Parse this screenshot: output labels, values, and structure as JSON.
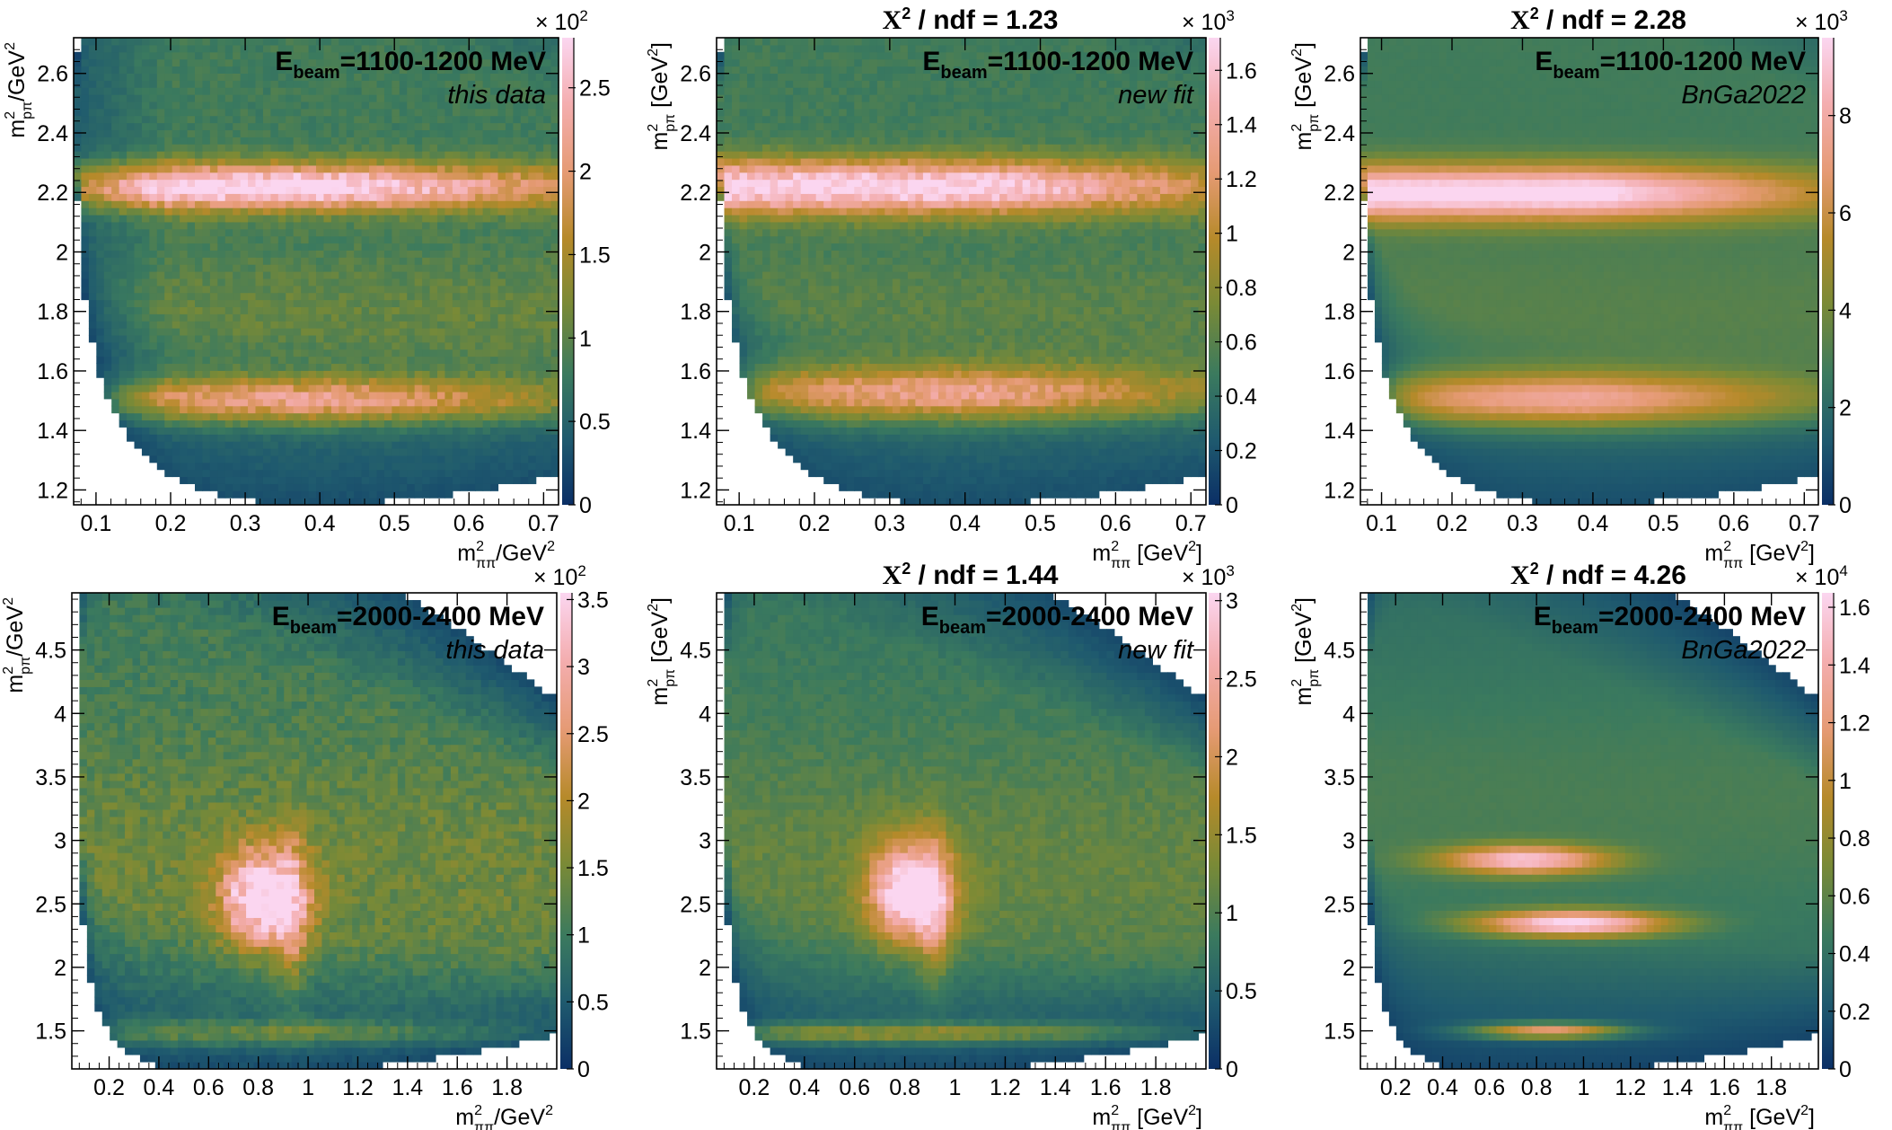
{
  "chart_data": [
    {
      "type": "heatmap",
      "id": "tl",
      "beam_label": "E_beam=1100-1200 MeV",
      "beam_prefix": "E",
      "beam_sub": "beam",
      "beam_range": "=1100-1200 MeV",
      "sublabel": "this data",
      "chi2": "",
      "xlabel": "m²ππ/GeV²",
      "x_base": "m",
      "x_sup": "2",
      "x_sub": "ππ",
      "x_unit": "/GeV",
      "x_unit_sup": "2",
      "ylabel": "m²pπ/GeV²",
      "y_base": "m",
      "y_sup": "2",
      "y_sub": "pπ",
      "y_unit": "/GeV",
      "y_unit_sup": "2",
      "xlim": [
        0.07,
        0.72
      ],
      "ylim": [
        1.15,
        2.72
      ],
      "xticks": [
        "0.1",
        "0.2",
        "0.3",
        "0.4",
        "0.5",
        "0.6",
        "0.7"
      ],
      "yticks": [
        "1.2",
        "1.4",
        "1.6",
        "1.8",
        "2",
        "2.2",
        "2.4",
        "2.6"
      ],
      "z_multiplier": "× 10²",
      "z_mult_base": "× 10",
      "z_mult_exp": "2",
      "zlim": [
        0,
        2.8
      ],
      "zticks": [
        "0",
        "0.5",
        "1",
        "1.5",
        "2",
        "2.5"
      ]
    },
    {
      "type": "heatmap",
      "id": "tm",
      "beam_label": "E_beam=1100-1200 MeV",
      "beam_prefix": "E",
      "beam_sub": "beam",
      "beam_range": "=1100-1200 MeV",
      "sublabel": "new fit",
      "chi2": "X² / ndf = 1.23",
      "chi_base": "X",
      "chi_sup": "2",
      "chi_rest": " / ndf = 1.23",
      "xlabel": "m²ππ [GeV²]",
      "x_base": "m",
      "x_sup": "2",
      "x_sub": "ππ",
      "x_unit": " [GeV",
      "x_unit_sup": "2",
      "x_unit_end": "]",
      "ylabel": "m²pπ [GeV²]",
      "y_base": "m",
      "y_sup": "2",
      "y_sub": "pπ",
      "y_unit": " [GeV",
      "y_unit_sup": "2",
      "y_unit_end": "]",
      "xlim": [
        0.07,
        0.72
      ],
      "ylim": [
        1.15,
        2.72
      ],
      "xticks": [
        "0.1",
        "0.2",
        "0.3",
        "0.4",
        "0.5",
        "0.6",
        "0.7"
      ],
      "yticks": [
        "1.2",
        "1.4",
        "1.6",
        "1.8",
        "2",
        "2.2",
        "2.4",
        "2.6"
      ],
      "z_multiplier": "× 10³",
      "z_mult_base": "× 10",
      "z_mult_exp": "3",
      "zlim": [
        0,
        1.72
      ],
      "zticks": [
        "0",
        "0.2",
        "0.4",
        "0.6",
        "0.8",
        "1",
        "1.2",
        "1.4",
        "1.6"
      ]
    },
    {
      "type": "heatmap",
      "id": "tr",
      "beam_label": "E_beam=1100-1200 MeV",
      "beam_prefix": "E",
      "beam_sub": "beam",
      "beam_range": "=1100-1200 MeV",
      "sublabel": "BnGa2022",
      "chi2": "X² / ndf = 2.28",
      "chi_base": "X",
      "chi_sup": "2",
      "chi_rest": " / ndf = 2.28",
      "xlabel": "m²ππ [GeV²]",
      "x_base": "m",
      "x_sup": "2",
      "x_sub": "ππ",
      "x_unit": " [GeV",
      "x_unit_sup": "2",
      "x_unit_end": "]",
      "ylabel": "m²pπ [GeV²]",
      "y_base": "m",
      "y_sup": "2",
      "y_sub": "pπ",
      "y_unit": " [GeV",
      "y_unit_sup": "2",
      "y_unit_end": "]",
      "xlim": [
        0.07,
        0.72
      ],
      "ylim": [
        1.15,
        2.72
      ],
      "xticks": [
        "0.1",
        "0.2",
        "0.3",
        "0.4",
        "0.5",
        "0.6",
        "0.7"
      ],
      "yticks": [
        "1.2",
        "1.4",
        "1.6",
        "1.8",
        "2",
        "2.2",
        "2.4",
        "2.6"
      ],
      "z_multiplier": "× 10³",
      "z_mult_base": "× 10",
      "z_mult_exp": "3",
      "zlim": [
        0,
        9.6
      ],
      "zticks": [
        "0",
        "2",
        "4",
        "6",
        "8"
      ]
    },
    {
      "type": "heatmap",
      "id": "bl",
      "beam_label": "E_beam=2000-2400 MeV",
      "beam_prefix": "E",
      "beam_sub": "beam",
      "beam_range": "=2000-2400 MeV",
      "sublabel": "this data",
      "chi2": "",
      "xlabel": "m²ππ/GeV²",
      "x_base": "m",
      "x_sup": "2",
      "x_sub": "ππ",
      "x_unit": "/GeV",
      "x_unit_sup": "2",
      "ylabel": "m²pπ/GeV²",
      "y_base": "m",
      "y_sup": "2",
      "y_sub": "pπ",
      "y_unit": "/GeV",
      "y_unit_sup": "2",
      "xlim": [
        0.05,
        2.0
      ],
      "ylim": [
        1.2,
        4.95
      ],
      "xticks": [
        "0.2",
        "0.4",
        "0.6",
        "0.8",
        "1",
        "1.2",
        "1.4",
        "1.6",
        "1.8"
      ],
      "yticks": [
        "1.5",
        "2",
        "2.5",
        "3",
        "3.5",
        "4",
        "4.5"
      ],
      "z_multiplier": "× 10²",
      "z_mult_base": "× 10",
      "z_mult_exp": "2",
      "zlim": [
        0,
        3.55
      ],
      "zticks": [
        "0",
        "0.5",
        "1",
        "1.5",
        "2",
        "2.5",
        "3",
        "3.5"
      ]
    },
    {
      "type": "heatmap",
      "id": "bm",
      "beam_label": "E_beam=2000-2400 MeV",
      "beam_prefix": "E",
      "beam_sub": "beam",
      "beam_range": "=2000-2400 MeV",
      "sublabel": "new fit",
      "chi2": "X² / ndf = 1.44",
      "chi_base": "X",
      "chi_sup": "2",
      "chi_rest": " / ndf = 1.44",
      "xlabel": "m²ππ [GeV²]",
      "x_base": "m",
      "x_sup": "2",
      "x_sub": "ππ",
      "x_unit": " [GeV",
      "x_unit_sup": "2",
      "x_unit_end": "]",
      "ylabel": "m²pπ [GeV²]",
      "y_base": "m",
      "y_sup": "2",
      "y_sub": "pπ",
      "y_unit": " [GeV",
      "y_unit_sup": "2",
      "y_unit_end": "]",
      "xlim": [
        0.05,
        2.0
      ],
      "ylim": [
        1.2,
        4.95
      ],
      "xticks": [
        "0.2",
        "0.4",
        "0.6",
        "0.8",
        "1",
        "1.2",
        "1.4",
        "1.6",
        "1.8"
      ],
      "yticks": [
        "1.5",
        "2",
        "2.5",
        "3",
        "3.5",
        "4",
        "4.5"
      ],
      "z_multiplier": "× 10³",
      "z_mult_base": "× 10",
      "z_mult_exp": "3",
      "zlim": [
        0,
        3.05
      ],
      "zticks": [
        "0",
        "0.5",
        "1",
        "1.5",
        "2",
        "2.5",
        "3"
      ]
    },
    {
      "type": "heatmap",
      "id": "br",
      "beam_label": "E_beam=2000-2400 MeV",
      "beam_prefix": "E",
      "beam_sub": "beam",
      "beam_range": "=2000-2400 MeV",
      "sublabel": "BnGa2022",
      "chi2": "X² / ndf = 4.26",
      "chi_base": "X",
      "chi_sup": "2",
      "chi_rest": " / ndf = 4.26",
      "xlabel": "m²ππ [GeV²]",
      "x_base": "m",
      "x_sup": "2",
      "x_sub": "ππ",
      "x_unit": " [GeV",
      "x_unit_sup": "2",
      "x_unit_end": "]",
      "ylabel": "m²pπ [GeV²]",
      "y_base": "m",
      "y_sup": "2",
      "y_sub": "pπ",
      "y_unit": " [GeV",
      "y_unit_sup": "2",
      "y_unit_end": "]",
      "xlim": [
        0.05,
        2.0
      ],
      "ylim": [
        1.2,
        4.95
      ],
      "xticks": [
        "0.2",
        "0.4",
        "0.6",
        "0.8",
        "1",
        "1.2",
        "1.4",
        "1.6",
        "1.8"
      ],
      "yticks": [
        "1.5",
        "2",
        "2.5",
        "3",
        "3.5",
        "4",
        "4.5"
      ],
      "z_multiplier": "× 10⁴",
      "z_mult_base": "× 10",
      "z_mult_exp": "4",
      "zlim": [
        0,
        1.65
      ],
      "zticks": [
        "0",
        "0.2",
        "0.4",
        "0.6",
        "0.8",
        "1",
        "1.2",
        "1.4",
        "1.6"
      ]
    }
  ],
  "colors": {
    "colormap": [
      "#0b2f66",
      "#1f5a6e",
      "#3b7a5e",
      "#7a8a36",
      "#b68a2a",
      "#e59a73",
      "#f4aeb0",
      "#fbd6f0"
    ],
    "background": "#ffffff",
    "axis": "#000000"
  }
}
